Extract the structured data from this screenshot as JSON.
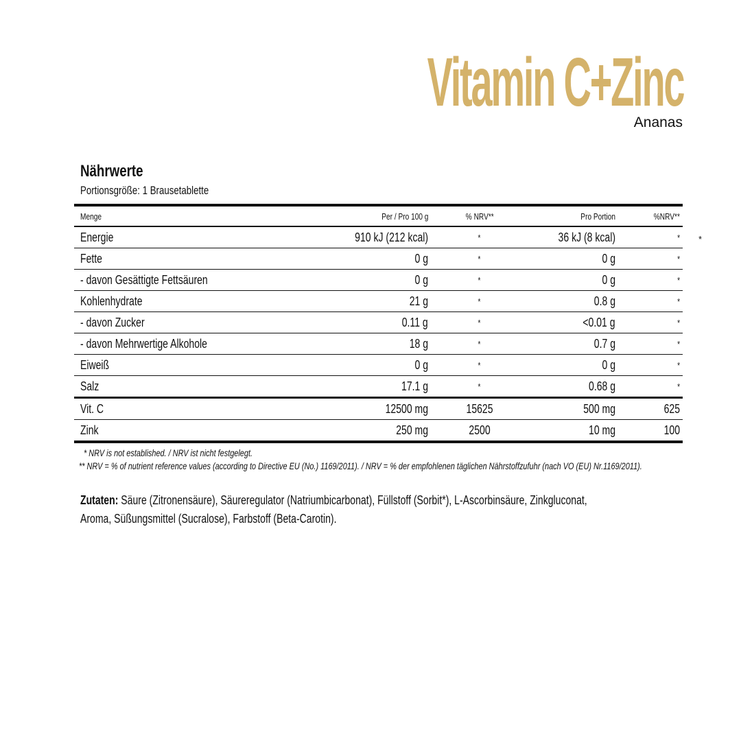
{
  "header": {
    "title": "Vitamin C+Zinc",
    "subtitle": "Ananas",
    "title_color": "#d4b26a"
  },
  "nutrition": {
    "heading": "Nährwerte",
    "portion": "Portionsgröße: 1 Brausetablette",
    "columns": [
      "Menge",
      "Per / Pro 100 g",
      "% NRV**",
      "Pro Portion",
      "%NRV**"
    ],
    "rows": [
      [
        "Energie",
        "910 kJ (212 kcal)",
        "*",
        "36 kJ (8 kcal)",
        "*"
      ],
      [
        "Fette",
        "0 g",
        "*",
        "0 g",
        "*"
      ],
      [
        "- davon Gesättigte Fettsäuren",
        "0 g",
        "*",
        "0 g",
        "*"
      ],
      [
        "Kohlenhydrate",
        "21 g",
        "*",
        "0.8 g",
        "*"
      ],
      [
        "- davon Zucker",
        "0.11 g",
        "*",
        "<0.01 g",
        "*"
      ],
      [
        "- davon Mehrwertige Alkohole",
        "18 g",
        "*",
        "0.7 g",
        "*"
      ],
      [
        "Eiweiß",
        "0 g",
        "*",
        "0 g",
        "*"
      ],
      [
        "Salz",
        "17.1 g",
        "*",
        "0.68 g",
        "*"
      ],
      [
        "Vit. C",
        "12500 mg",
        "15625",
        "500 mg",
        "625"
      ],
      [
        "Zink",
        "250 mg",
        "2500",
        "10 mg",
        "100"
      ]
    ],
    "stray_mark": "*"
  },
  "footnotes": {
    "f1": "* NRV is not established. / NRV ist nicht festgelegt.",
    "f2": "** NRV = % of nutrient reference values (according to Directive EU (No.) 1169/2011). / NRV = % der empfohlenen täglichen Nährstoffzufuhr (nach VO (EU) Nr.1169/2011)."
  },
  "ingredients": {
    "label": "Zutaten:",
    "line1": "Säure (Zitronensäure), Säureregulator (Natriumbicarbonat), Füllstoff (Sorbit*), L-Ascorbinsäure, Zinkgluconat,",
    "line2": "Aroma, Süßungsmittel (Sucralose), Farbstoff (Beta-Carotin)."
  }
}
